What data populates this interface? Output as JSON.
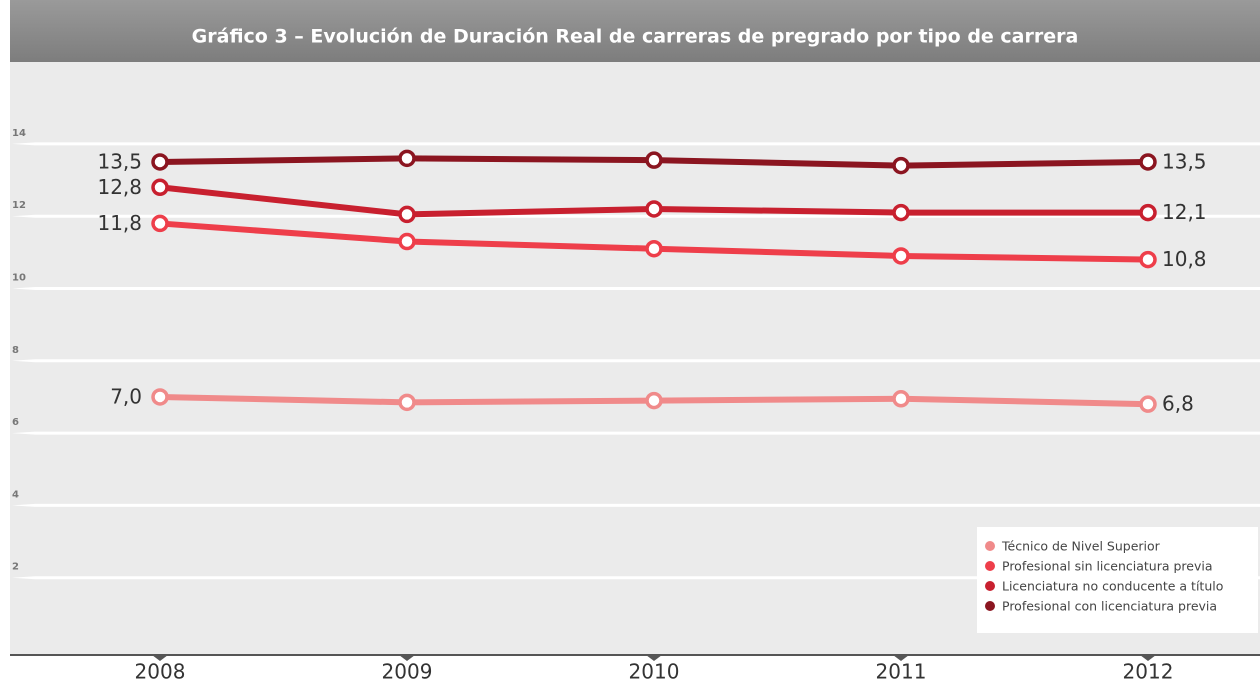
{
  "chart_data": {
    "type": "line",
    "title": "Gráfico 3 – Evolución de Duración Real de carreras de pregrado por tipo de carrera",
    "categories": [
      "2008",
      "2009",
      "2010",
      "2011",
      "2012"
    ],
    "series": [
      {
        "name": "Técnico de Nivel Superior",
        "color": "#f08a8a",
        "values": [
          7.0,
          6.85,
          6.9,
          6.95,
          6.8
        ],
        "value_labels": [
          "7,0",
          null,
          null,
          null,
          "6,8"
        ]
      },
      {
        "name": "Profesional sin licenciatura previa",
        "color": "#ee3e4a",
        "values": [
          11.8,
          11.3,
          11.1,
          10.9,
          10.8
        ],
        "value_labels": [
          "11,8",
          null,
          null,
          null,
          "10,8"
        ]
      },
      {
        "name": "Licenciatura no conducente a título",
        "color": "#c8202f",
        "values": [
          12.8,
          12.05,
          12.2,
          12.1,
          12.1
        ],
        "value_labels": [
          "12,8",
          null,
          null,
          null,
          "12,1"
        ]
      },
      {
        "name": "Profesional con licenciatura previa",
        "color": "#8b1520",
        "values": [
          13.5,
          13.6,
          13.55,
          13.4,
          13.5
        ],
        "value_labels": [
          "13,5",
          null,
          null,
          null,
          "13,5"
        ]
      }
    ],
    "ylim": [
      0,
      16
    ],
    "yticks": [
      2,
      4,
      6,
      8,
      10,
      12,
      14
    ],
    "grid": true,
    "legend": "lower right"
  }
}
